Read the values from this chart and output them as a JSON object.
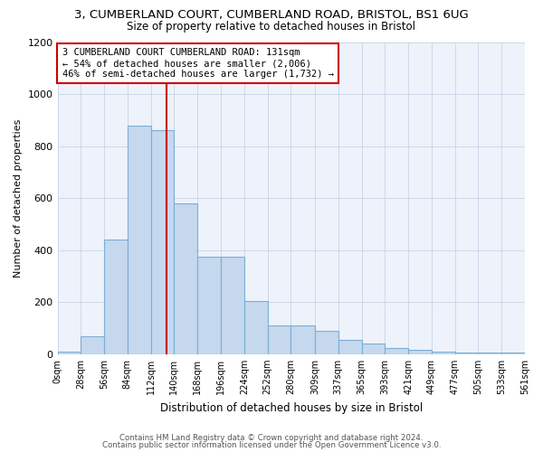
{
  "title": "3, CUMBERLAND COURT, CUMBERLAND ROAD, BRISTOL, BS1 6UG",
  "subtitle": "Size of property relative to detached houses in Bristol",
  "xlabel": "Distribution of detached houses by size in Bristol",
  "ylabel": "Number of detached properties",
  "bar_color": "#c5d8ee",
  "bar_edgecolor": "#7aafd4",
  "highlight_color": "#cc0000",
  "property_label": "3 CUMBERLAND COURT CUMBERLAND ROAD: 131sqm",
  "annotation_line1": "← 54% of detached houses are smaller (2,006)",
  "annotation_line2": "46% of semi-detached houses are larger (1,732) →",
  "bins": [
    0,
    28,
    56,
    84,
    112,
    140,
    168,
    196,
    224,
    252,
    280,
    309,
    337,
    365,
    393,
    421,
    449,
    477,
    505,
    533,
    561
  ],
  "bin_labels": [
    "0sqm",
    "28sqm",
    "56sqm",
    "84sqm",
    "112sqm",
    "140sqm",
    "168sqm",
    "196sqm",
    "224sqm",
    "252sqm",
    "280sqm",
    "309sqm",
    "337sqm",
    "365sqm",
    "393sqm",
    "421sqm",
    "449sqm",
    "477sqm",
    "505sqm",
    "533sqm",
    "561sqm"
  ],
  "counts": [
    10,
    70,
    440,
    880,
    860,
    580,
    375,
    375,
    205,
    110,
    110,
    90,
    55,
    40,
    25,
    15,
    10,
    5,
    5,
    5
  ],
  "ylim": [
    0,
    1200
  ],
  "yticks": [
    0,
    200,
    400,
    600,
    800,
    1000,
    1200
  ],
  "vline_x": 131,
  "footnote1": "Contains HM Land Registry data © Crown copyright and database right 2024.",
  "footnote2": "Contains public sector information licensed under the Open Government Licence v3.0."
}
